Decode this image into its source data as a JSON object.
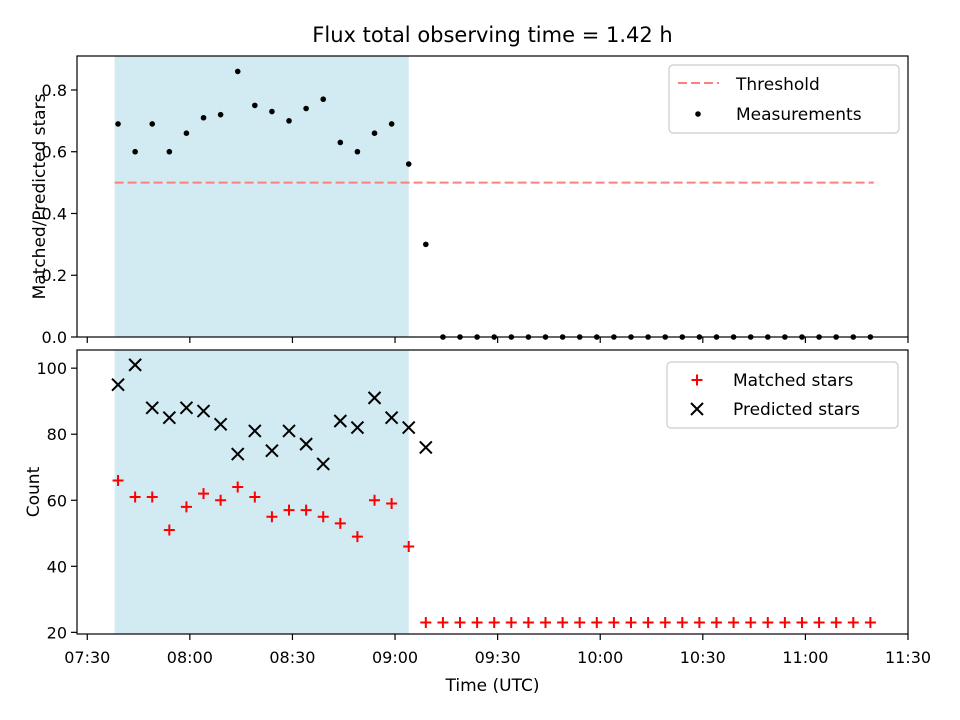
{
  "colors": {
    "observing_window": "#add8e6",
    "threshold": "#ff7f7f",
    "measurements": "#000000",
    "matched": "#ff0000",
    "predicted": "#000000"
  },
  "chart_data": [
    {
      "type": "scatter",
      "panel": "top",
      "title": "Flux total observing time = 1.42 h",
      "ylabel": "Matched/Predicted stars",
      "xlim": [
        "07:27",
        "11:30"
      ],
      "ylim": [
        0,
        0.91
      ],
      "yticks": [
        0.0,
        0.2,
        0.4,
        0.6,
        0.8
      ],
      "ytick_labels": [
        "0.0",
        "0.2",
        "0.4",
        "0.6",
        "0.8"
      ],
      "legend_position": "top-right",
      "shaded_region": {
        "x_start": "07:38",
        "x_end": "09:04"
      },
      "threshold": {
        "name": "Threshold",
        "value": 0.5,
        "x_start": "07:38",
        "x_end": "11:20",
        "style": "dashed"
      },
      "series": [
        {
          "name": "Measurements",
          "marker": "dot",
          "x": [
            "07:39",
            "07:44",
            "07:49",
            "07:54",
            "07:59",
            "08:04",
            "08:09",
            "08:14",
            "08:19",
            "08:24",
            "08:29",
            "08:34",
            "08:39",
            "08:44",
            "08:49",
            "08:54",
            "08:59",
            "09:04",
            "09:09",
            "09:14",
            "09:19",
            "09:24",
            "09:29",
            "09:34",
            "09:39",
            "09:44",
            "09:49",
            "09:54",
            "09:59",
            "10:04",
            "10:09",
            "10:14",
            "10:19",
            "10:24",
            "10:29",
            "10:34",
            "10:39",
            "10:44",
            "10:49",
            "10:54",
            "10:59",
            "11:04",
            "11:09",
            "11:14",
            "11:19"
          ],
          "y": [
            0.69,
            0.6,
            0.69,
            0.6,
            0.66,
            0.71,
            0.72,
            0.86,
            0.75,
            0.73,
            0.7,
            0.74,
            0.77,
            0.63,
            0.6,
            0.66,
            0.69,
            0.56,
            0.3,
            0,
            0,
            0,
            0,
            0,
            0,
            0,
            0,
            0,
            0,
            0,
            0,
            0,
            0,
            0,
            0,
            0,
            0,
            0,
            0,
            0,
            0,
            0,
            0,
            0,
            0
          ]
        }
      ]
    },
    {
      "type": "scatter",
      "panel": "bottom",
      "ylabel": "Count",
      "xlabel": "Time (UTC)",
      "xlim": [
        "07:27",
        "11:30"
      ],
      "ylim": [
        19.5,
        105.5
      ],
      "xticks": [
        "07:30",
        "08:00",
        "08:30",
        "09:00",
        "09:30",
        "10:00",
        "10:30",
        "11:00",
        "11:30"
      ],
      "xtick_labels": [
        "07:30",
        "08:00",
        "08:30",
        "09:00",
        "09:30",
        "10:00",
        "10:30",
        "11:00",
        "11:30"
      ],
      "yticks": [
        20,
        40,
        60,
        80,
        100
      ],
      "ytick_labels": [
        "20",
        "40",
        "60",
        "80",
        "100"
      ],
      "legend_position": "top-right",
      "shaded_region": {
        "x_start": "07:38",
        "x_end": "09:04"
      },
      "series": [
        {
          "name": "Matched stars",
          "marker": "plus",
          "x": [
            "07:39",
            "07:44",
            "07:49",
            "07:54",
            "07:59",
            "08:04",
            "08:09",
            "08:14",
            "08:19",
            "08:24",
            "08:29",
            "08:34",
            "08:39",
            "08:44",
            "08:49",
            "08:54",
            "08:59",
            "09:04",
            "09:09",
            "09:14",
            "09:19",
            "09:24",
            "09:29",
            "09:34",
            "09:39",
            "09:44",
            "09:49",
            "09:54",
            "09:59",
            "10:04",
            "10:09",
            "10:14",
            "10:19",
            "10:24",
            "10:29",
            "10:34",
            "10:39",
            "10:44",
            "10:49",
            "10:54",
            "10:59",
            "11:04",
            "11:09",
            "11:14",
            "11:19"
          ],
          "y": [
            66,
            61,
            61,
            51,
            58,
            62,
            60,
            64,
            61,
            55,
            57,
            57,
            55,
            53,
            49,
            60,
            59,
            46,
            23,
            23,
            23,
            23,
            23,
            23,
            23,
            23,
            23,
            23,
            23,
            23,
            23,
            23,
            23,
            23,
            23,
            23,
            23,
            23,
            23,
            23,
            23,
            23,
            23,
            23,
            23
          ]
        },
        {
          "name": "Predicted stars",
          "marker": "x",
          "x": [
            "07:39",
            "07:44",
            "07:49",
            "07:54",
            "07:59",
            "08:04",
            "08:09",
            "08:14",
            "08:19",
            "08:24",
            "08:29",
            "08:34",
            "08:39",
            "08:44",
            "08:49",
            "08:54",
            "08:59",
            "09:04",
            "09:09"
          ],
          "y": [
            95,
            101,
            88,
            85,
            88,
            87,
            83,
            74,
            81,
            75,
            81,
            77,
            71,
            84,
            82,
            91,
            85,
            82,
            76
          ]
        }
      ]
    }
  ]
}
